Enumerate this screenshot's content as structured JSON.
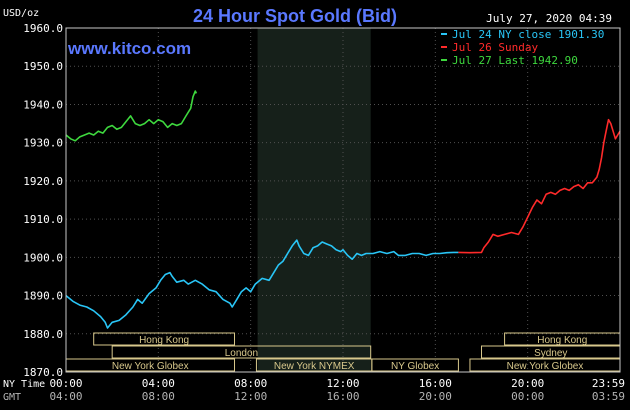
{
  "header": {
    "title": "24 Hour Spot Gold (Bid)",
    "unit": "USD/oz",
    "date": "July 27, 2020 04:39",
    "website": "www.kitco.com"
  },
  "legend": [
    {
      "text": "Jul 24 NY close 1901.30",
      "color": "#29c5f6"
    },
    {
      "text": "Jul 26 Sunday",
      "color": "#ff2a2a"
    },
    {
      "text": "Jul 27 Last 1942.90",
      "color": "#3ed83e"
    }
  ],
  "axis_labels": {
    "ny_time": "NY Time",
    "gmt": "GMT"
  },
  "colors": {
    "background": "#000000",
    "title": "#5a78ff",
    "text": "#ffffff",
    "axis": "#c8c8c8",
    "grid": "#505050",
    "shade": "#16201a",
    "session_box": "#d8c88c",
    "gmt_text": "#b4b4b4"
  },
  "sessions": [
    {
      "label": "Hong Kong",
      "start": 1.2,
      "end": 7.3
    },
    {
      "label": "London",
      "start": 2.0,
      "end": 13.2
    },
    {
      "label": "New York Globex",
      "start": 0,
      "end": 7.3
    },
    {
      "label": "New York NYMEX",
      "start": 8.25,
      "end": 13.25
    },
    {
      "label": "NY Globex",
      "start": 13.25,
      "end": 17.0
    },
    {
      "label": "Hong Kong",
      "start": 19.0,
      "end": 24.0
    },
    {
      "label": "Sydney",
      "start": 18.0,
      "end": 24.0
    },
    {
      "label": "New York Globex",
      "start": 17.5,
      "end": 24.0
    }
  ],
  "chart_data": {
    "type": "line",
    "title": "24 Hour Spot Gold (Bid)",
    "ylabel": "USD/oz",
    "ylim": [
      1870,
      1960
    ],
    "yticks": [
      1870,
      1880,
      1890,
      1900,
      1910,
      1920,
      1930,
      1940,
      1950,
      1960
    ],
    "ytick_labels": [
      "1870.0",
      "1880.0",
      "1890.0",
      "1900.0",
      "1910.0",
      "1920.0",
      "1930.0",
      "1940.0",
      "1950.0",
      "1960.0"
    ],
    "xlim": [
      0,
      24
    ],
    "xticks": [
      0,
      4,
      8,
      12,
      16,
      20,
      24
    ],
    "xtick_labels_ny": [
      "00:00",
      "04:00",
      "08:00",
      "12:00",
      "16:00",
      "20:00",
      "23:59"
    ],
    "xtick_labels_gmt": [
      "04:00",
      "08:00",
      "12:00",
      "16:00",
      "20:00",
      "00:00",
      "03:59"
    ],
    "shaded_range": [
      8.3,
      13.2
    ],
    "grid": true,
    "legend_position": "top-right",
    "series": [
      {
        "name": "Jul 24 NY close 1901.30",
        "color": "#29c5f6",
        "points": [
          [
            0,
            1890
          ],
          [
            0.3,
            1888.5
          ],
          [
            0.6,
            1887.5
          ],
          [
            0.9,
            1887
          ],
          [
            1.2,
            1886
          ],
          [
            1.5,
            1884.5
          ],
          [
            1.7,
            1883
          ],
          [
            1.8,
            1881.5
          ],
          [
            2.0,
            1883
          ],
          [
            2.3,
            1883.5
          ],
          [
            2.6,
            1885
          ],
          [
            2.9,
            1887
          ],
          [
            3.1,
            1889
          ],
          [
            3.3,
            1888
          ],
          [
            3.6,
            1890.5
          ],
          [
            3.9,
            1892
          ],
          [
            4.1,
            1894
          ],
          [
            4.3,
            1895.5
          ],
          [
            4.5,
            1896
          ],
          [
            4.6,
            1895
          ],
          [
            4.8,
            1893.5
          ],
          [
            5.1,
            1894
          ],
          [
            5.3,
            1893
          ],
          [
            5.6,
            1894
          ],
          [
            5.9,
            1893
          ],
          [
            6.2,
            1891.5
          ],
          [
            6.5,
            1891
          ],
          [
            6.8,
            1889
          ],
          [
            7.1,
            1888
          ],
          [
            7.2,
            1887
          ],
          [
            7.4,
            1889
          ],
          [
            7.6,
            1891
          ],
          [
            7.8,
            1892
          ],
          [
            8.0,
            1891
          ],
          [
            8.2,
            1893
          ],
          [
            8.5,
            1894.5
          ],
          [
            8.8,
            1894
          ],
          [
            9.0,
            1896
          ],
          [
            9.2,
            1898
          ],
          [
            9.4,
            1899
          ],
          [
            9.6,
            1901
          ],
          [
            9.8,
            1903
          ],
          [
            10.0,
            1904.5
          ],
          [
            10.1,
            1903
          ],
          [
            10.3,
            1901
          ],
          [
            10.5,
            1900.5
          ],
          [
            10.7,
            1902.5
          ],
          [
            10.9,
            1903
          ],
          [
            11.1,
            1904
          ],
          [
            11.3,
            1903.5
          ],
          [
            11.5,
            1903
          ],
          [
            11.7,
            1902
          ],
          [
            11.9,
            1901.5
          ],
          [
            12.0,
            1902
          ],
          [
            12.2,
            1900.5
          ],
          [
            12.4,
            1899.5
          ],
          [
            12.6,
            1901
          ],
          [
            12.8,
            1900.5
          ],
          [
            13.0,
            1901
          ],
          [
            13.3,
            1901
          ],
          [
            13.6,
            1901.5
          ],
          [
            13.9,
            1901
          ],
          [
            14.2,
            1901.5
          ],
          [
            14.4,
            1900.5
          ],
          [
            14.7,
            1900.5
          ],
          [
            15.0,
            1901
          ],
          [
            15.3,
            1901
          ],
          [
            15.6,
            1900.5
          ],
          [
            15.9,
            1901
          ],
          [
            16.2,
            1901
          ],
          [
            16.5,
            1901.2
          ],
          [
            16.8,
            1901.3
          ],
          [
            17.0,
            1901.3
          ]
        ]
      },
      {
        "name": "Jul 26 Sunday",
        "color": "#ff2a2a",
        "points": [
          [
            17.0,
            1901.3
          ],
          [
            17.5,
            1901.2
          ],
          [
            18.0,
            1901.3
          ],
          [
            18.1,
            1902.5
          ],
          [
            18.3,
            1904
          ],
          [
            18.5,
            1906
          ],
          [
            18.7,
            1905.5
          ],
          [
            19.0,
            1906
          ],
          [
            19.3,
            1906.5
          ],
          [
            19.6,
            1906
          ],
          [
            19.8,
            1908
          ],
          [
            20.0,
            1910.5
          ],
          [
            20.2,
            1913
          ],
          [
            20.4,
            1915
          ],
          [
            20.6,
            1914
          ],
          [
            20.8,
            1916.5
          ],
          [
            21.0,
            1917
          ],
          [
            21.2,
            1916.5
          ],
          [
            21.4,
            1917.5
          ],
          [
            21.6,
            1918
          ],
          [
            21.8,
            1917.5
          ],
          [
            22.0,
            1918.5
          ],
          [
            22.2,
            1919
          ],
          [
            22.4,
            1918
          ],
          [
            22.6,
            1919.5
          ],
          [
            22.8,
            1919.5
          ],
          [
            23.0,
            1921
          ],
          [
            23.1,
            1923
          ],
          [
            23.2,
            1926
          ],
          [
            23.3,
            1930
          ],
          [
            23.4,
            1933
          ],
          [
            23.5,
            1936
          ],
          [
            23.6,
            1935
          ],
          [
            23.7,
            1933
          ],
          [
            23.8,
            1931
          ],
          [
            23.9,
            1932
          ],
          [
            24.0,
            1933
          ]
        ]
      },
      {
        "name": "Jul 27 Last 1942.90",
        "color": "#3ed83e",
        "points": [
          [
            0,
            1932
          ],
          [
            0.2,
            1931
          ],
          [
            0.4,
            1930.5
          ],
          [
            0.6,
            1931.5
          ],
          [
            0.8,
            1932
          ],
          [
            1.0,
            1932.5
          ],
          [
            1.2,
            1932
          ],
          [
            1.4,
            1933
          ],
          [
            1.6,
            1932.5
          ],
          [
            1.8,
            1934
          ],
          [
            2.0,
            1934.5
          ],
          [
            2.2,
            1933.5
          ],
          [
            2.4,
            1934
          ],
          [
            2.6,
            1935.5
          ],
          [
            2.8,
            1937
          ],
          [
            3.0,
            1935
          ],
          [
            3.2,
            1934.5
          ],
          [
            3.4,
            1935
          ],
          [
            3.6,
            1936
          ],
          [
            3.8,
            1935
          ],
          [
            4.0,
            1936
          ],
          [
            4.2,
            1935.5
          ],
          [
            4.4,
            1934
          ],
          [
            4.6,
            1935
          ],
          [
            4.8,
            1934.5
          ],
          [
            5.0,
            1935
          ],
          [
            5.2,
            1937
          ],
          [
            5.4,
            1939
          ],
          [
            5.5,
            1942
          ],
          [
            5.6,
            1943.5
          ],
          [
            5.65,
            1942.9
          ]
        ]
      }
    ]
  }
}
